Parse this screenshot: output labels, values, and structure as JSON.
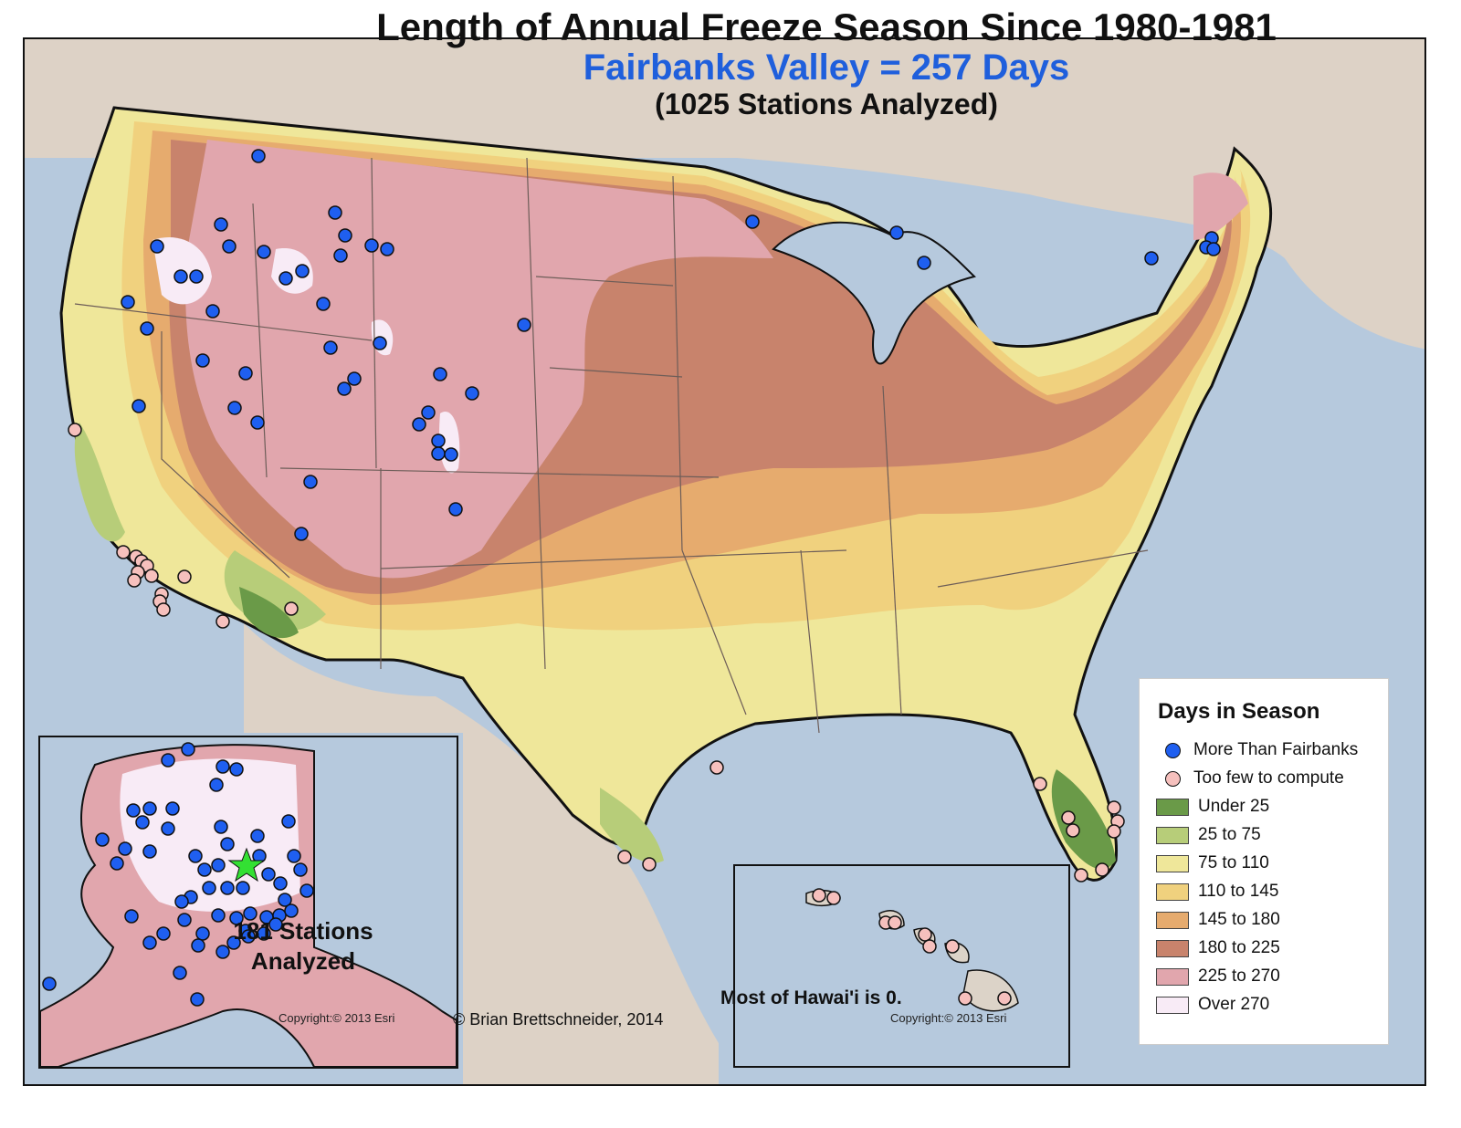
{
  "title": "Length of Annual Freeze Season Since 1980-1981",
  "subtitle": "Fairbanks Valley = 257 Days",
  "stations_analyzed": "(1025 Stations Analyzed)",
  "alaska_inset": {
    "stations_text": "181 Stations Analyzed",
    "copyright": "Copyright:© 2013 Esri"
  },
  "hawaii_inset": {
    "note": "Most of Hawai'i is 0.",
    "copyright": "Copyright:© 2013 Esri"
  },
  "credit": "© Brian Brettschneider, 2014",
  "legend": {
    "title": "Days in Season",
    "markers": [
      {
        "label": "More Than Fairbanks",
        "color": "#1f5ff0"
      },
      {
        "label": "Too few to compute",
        "color": "#f6c0bd"
      }
    ],
    "classes": [
      {
        "label": "Under 25",
        "color": "#6a9a48"
      },
      {
        "label": "25 to 75",
        "color": "#b7cd79"
      },
      {
        "label": "75 to 110",
        "color": "#efe79a"
      },
      {
        "label": "110 to 145",
        "color": "#f0d17e"
      },
      {
        "label": "145 to 180",
        "color": "#e6ab6e"
      },
      {
        "label": "180 to 225",
        "color": "#c8836c"
      },
      {
        "label": "225 to 270",
        "color": "#e1a6ad"
      },
      {
        "label": "Over 270",
        "color": "#f8ebf6"
      }
    ]
  },
  "colors": {
    "water": "#b6c9dd",
    "land_background": "#dcd3c8",
    "boundary": "#111111",
    "state_lines": "#6d5d58",
    "fairbanks_star": "#33e033"
  }
}
